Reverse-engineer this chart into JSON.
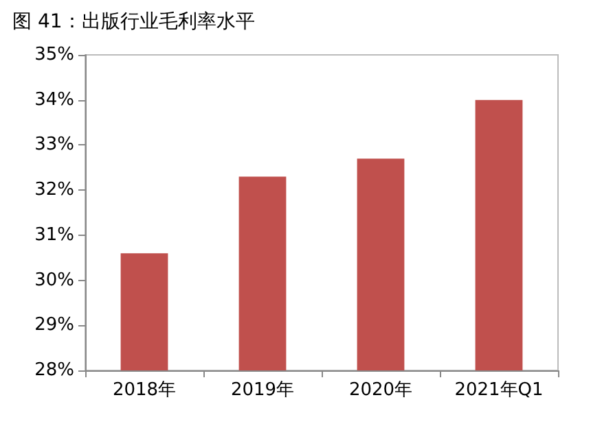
{
  "chart_data": {
    "type": "bar",
    "title": "图 41：出版行业毛利率水平",
    "categories": [
      "2018年",
      "2019年",
      "2020年",
      "2021年Q1"
    ],
    "values": [
      30.6,
      32.3,
      32.7,
      34.0
    ],
    "color": "#c0504d",
    "ylim": [
      28,
      35
    ],
    "yticks": [
      {
        "value": 28,
        "label": "28%"
      },
      {
        "value": 29,
        "label": "29%"
      },
      {
        "value": 30,
        "label": "30%"
      },
      {
        "value": 31,
        "label": "31%"
      },
      {
        "value": 32,
        "label": "32%"
      },
      {
        "value": 33,
        "label": "33%"
      },
      {
        "value": 34,
        "label": "34%"
      },
      {
        "value": 35,
        "label": "35%"
      }
    ],
    "grid": false
  }
}
